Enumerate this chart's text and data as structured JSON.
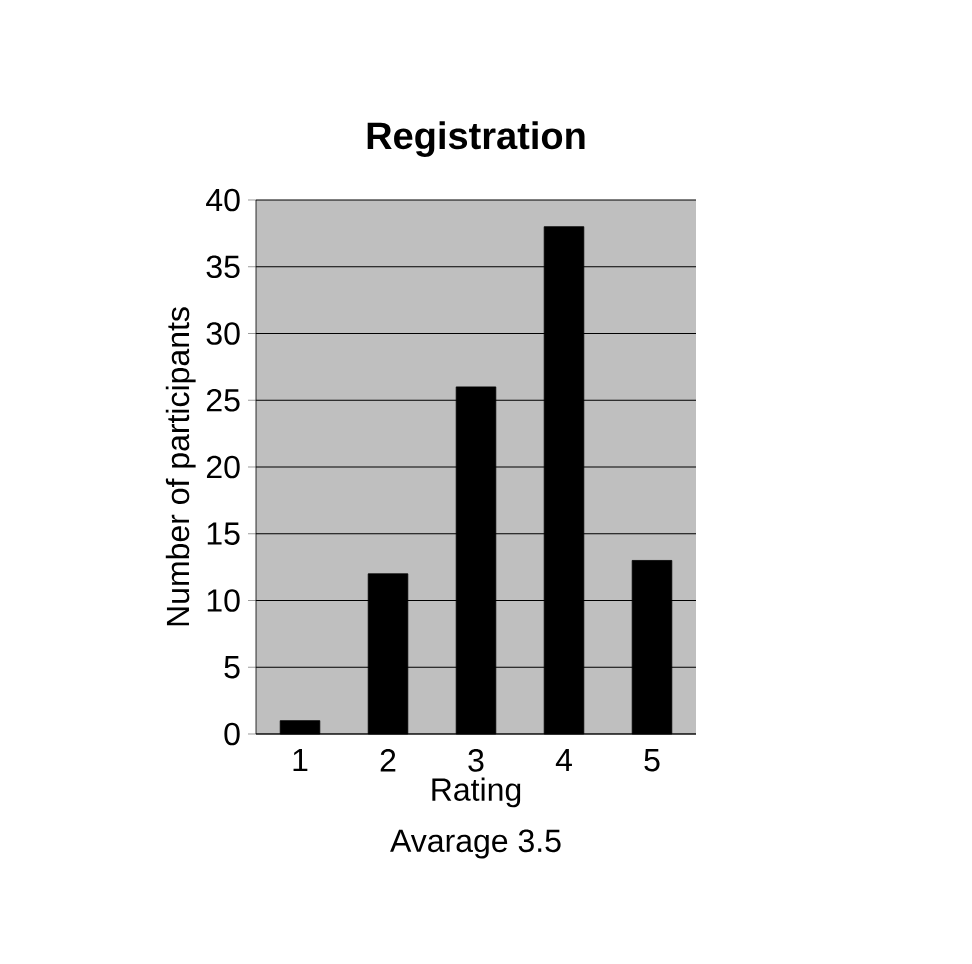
{
  "chart_data": {
    "type": "bar",
    "title": "Registration",
    "xlabel": "Rating",
    "ylabel": "Number of participants",
    "annotations": [
      "Avarage 3.5"
    ],
    "categories": [
      "1",
      "2",
      "3",
      "4",
      "5"
    ],
    "values": [
      1,
      12,
      26,
      38,
      13
    ],
    "color": "#000000",
    "ylim": [
      0,
      40
    ],
    "yticks": [
      0,
      5,
      10,
      15,
      20,
      25,
      30,
      35,
      40
    ],
    "grid": "y"
  }
}
